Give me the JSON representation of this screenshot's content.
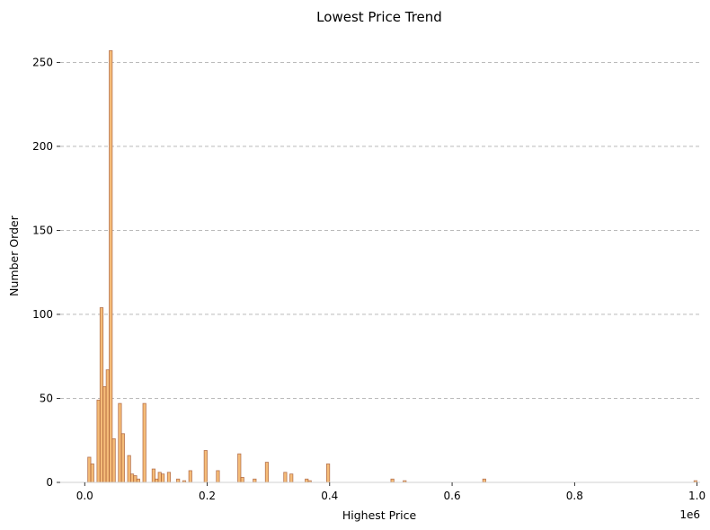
{
  "chart_data": {
    "type": "bar",
    "title": "Lowest Price Trend",
    "xlabel": "Highest Price",
    "ylabel": "Number Order",
    "x_offset_label": "1e6",
    "xlim": [
      -0.04,
      1.005
    ],
    "ylim": [
      0,
      270
    ],
    "xticks": [
      0.0,
      0.2,
      0.4,
      0.6,
      0.8,
      1.0
    ],
    "xtick_labels": [
      "0.0",
      "0.2",
      "0.4",
      "0.6",
      "0.8",
      "1.0"
    ],
    "yticks": [
      0,
      50,
      100,
      150,
      200,
      250
    ],
    "ytick_labels": [
      "0",
      "50",
      "100",
      "150",
      "200",
      "250"
    ],
    "grid": "y-dashed",
    "legend": "none",
    "colors": {
      "bar_fill": "#f5bc78",
      "bar_edge": "#a0522d",
      "grid": "#b0b0b0",
      "baseline": "#d0d0d0"
    },
    "bin_width": 0.005,
    "bins": [
      {
        "x": 0.005,
        "count": 15
      },
      {
        "x": 0.01,
        "count": 11
      },
      {
        "x": 0.02,
        "count": 49
      },
      {
        "x": 0.025,
        "count": 104
      },
      {
        "x": 0.03,
        "count": 57
      },
      {
        "x": 0.035,
        "count": 67
      },
      {
        "x": 0.04,
        "count": 257
      },
      {
        "x": 0.045,
        "count": 26
      },
      {
        "x": 0.055,
        "count": 47
      },
      {
        "x": 0.06,
        "count": 29
      },
      {
        "x": 0.07,
        "count": 16
      },
      {
        "x": 0.075,
        "count": 5
      },
      {
        "x": 0.08,
        "count": 4
      },
      {
        "x": 0.085,
        "count": 2
      },
      {
        "x": 0.095,
        "count": 47
      },
      {
        "x": 0.11,
        "count": 8
      },
      {
        "x": 0.115,
        "count": 2
      },
      {
        "x": 0.12,
        "count": 6
      },
      {
        "x": 0.125,
        "count": 5
      },
      {
        "x": 0.135,
        "count": 6
      },
      {
        "x": 0.15,
        "count": 2
      },
      {
        "x": 0.16,
        "count": 1
      },
      {
        "x": 0.17,
        "count": 7
      },
      {
        "x": 0.195,
        "count": 19
      },
      {
        "x": 0.215,
        "count": 7
      },
      {
        "x": 0.25,
        "count": 17
      },
      {
        "x": 0.255,
        "count": 3
      },
      {
        "x": 0.275,
        "count": 2
      },
      {
        "x": 0.295,
        "count": 12
      },
      {
        "x": 0.325,
        "count": 6
      },
      {
        "x": 0.335,
        "count": 5
      },
      {
        "x": 0.36,
        "count": 2
      },
      {
        "x": 0.365,
        "count": 1
      },
      {
        "x": 0.395,
        "count": 11
      },
      {
        "x": 0.5,
        "count": 2
      },
      {
        "x": 0.52,
        "count": 1
      },
      {
        "x": 0.65,
        "count": 2
      },
      {
        "x": 0.995,
        "count": 1
      }
    ]
  }
}
